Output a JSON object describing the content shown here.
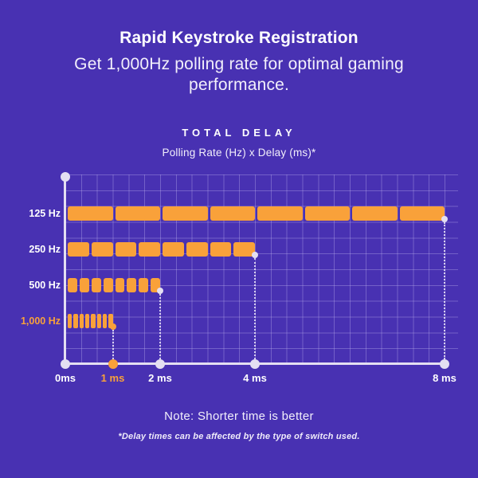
{
  "header": {
    "title": "Rapid Keystroke Registration",
    "subtitle": "Get 1,000Hz polling rate for optimal gaming performance."
  },
  "chart_header": {
    "title": "TOTAL DELAY",
    "subtitle": "Polling Rate (Hz) x Delay (ms)*"
  },
  "chart_data": {
    "type": "bar",
    "orientation": "horizontal",
    "title": "TOTAL DELAY",
    "subtitle": "Polling Rate (Hz) x Delay (ms)*",
    "categories": [
      "125 Hz",
      "250 Hz",
      "500 Hz",
      "1,000 Hz"
    ],
    "values_delay_ms": [
      8,
      4,
      2,
      1
    ],
    "segments_per_bar": 8,
    "xlim": [
      0,
      8
    ],
    "x_ticks": [
      {
        "label": "0ms",
        "ms": 0,
        "highlight": false
      },
      {
        "label": "1 ms",
        "ms": 1,
        "highlight": true
      },
      {
        "label": "2 ms",
        "ms": 2,
        "highlight": false
      },
      {
        "label": "4 ms",
        "ms": 4,
        "highlight": false
      },
      {
        "label": "8 ms",
        "ms": 8,
        "highlight": false
      }
    ],
    "highlight_category_index": 3,
    "grid": true,
    "legend": false
  },
  "footer": {
    "note": "Note: Shorter time is better",
    "footnote": "*Delay times can be affected by the type of switch used."
  },
  "colors": {
    "background": "#4831B2",
    "bar_orange": "#F9A13A",
    "accent_orange": "#F9A13A",
    "axis_white": "#E4DFF2",
    "grid_line": "rgba(198,188,242,0.34)",
    "text_white": "#FFFFFF",
    "text_soft_white": "#F2EFFB"
  }
}
